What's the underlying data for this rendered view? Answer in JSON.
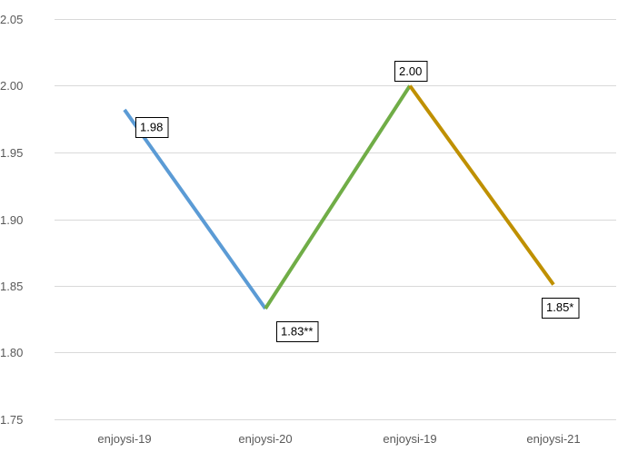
{
  "chart_data": {
    "type": "line",
    "title": "",
    "xlabel": "",
    "ylabel": "",
    "ylim": [
      1.75,
      2.05
    ],
    "yticks": [
      "1.75",
      "1.80",
      "1.85",
      "1.90",
      "1.95",
      "2.00",
      "2.05"
    ],
    "ytick_values": [
      1.75,
      1.8,
      1.85,
      1.9,
      1.95,
      2.0,
      2.05
    ],
    "grid": true,
    "legend": "none",
    "categories": [
      "enjoysi-19",
      "enjoysi-20",
      "enjoysi-19",
      "enjoysi-21"
    ],
    "points": [
      {
        "value": 1.982,
        "label": "1.98"
      },
      {
        "value": 1.833,
        "label": "1.83**"
      },
      {
        "value": 2.0,
        "label": "2.00"
      },
      {
        "value": 1.851,
        "label": "1.85*"
      }
    ],
    "segments": [
      {
        "from": 0,
        "to": 1,
        "color": "#5b9bd5"
      },
      {
        "from": 1,
        "to": 2,
        "color": "#70ad47"
      },
      {
        "from": 2,
        "to": 3,
        "color": "#bf9000"
      }
    ]
  }
}
